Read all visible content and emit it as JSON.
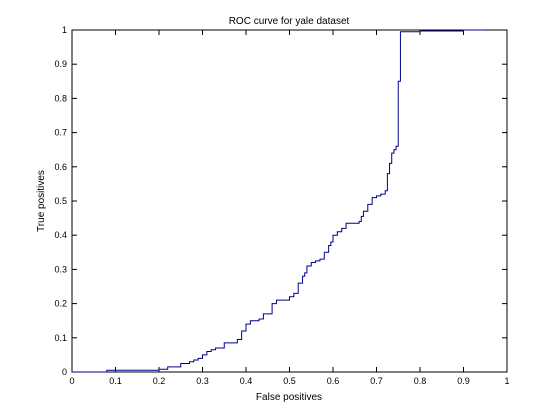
{
  "chart_data": {
    "type": "line",
    "title": "ROC curve for yale dataset",
    "xlabel": "False positives",
    "ylabel": "True positives",
    "xlim": [
      0,
      1
    ],
    "ylim": [
      0,
      1
    ],
    "xticks": [
      "0",
      "0.1",
      "0.2",
      "0.3",
      "0.4",
      "0.5",
      "0.6",
      "0.7",
      "0.8",
      "0.9",
      "1"
    ],
    "yticks": [
      "0",
      "0.1",
      "0.2",
      "0.3",
      "0.4",
      "0.5",
      "0.6",
      "0.7",
      "0.8",
      "0.9",
      "1"
    ],
    "grid": false,
    "colors": {
      "line": "#00008b",
      "axes": "#000000",
      "background": "#ffffff"
    },
    "series": [
      {
        "step": "post",
        "x": [
          0.0,
          0.08,
          0.2,
          0.22,
          0.25,
          0.27,
          0.28,
          0.29,
          0.3,
          0.31,
          0.32,
          0.33,
          0.35,
          0.38,
          0.39,
          0.4,
          0.41,
          0.43,
          0.44,
          0.46,
          0.47,
          0.5,
          0.51,
          0.52,
          0.53,
          0.535,
          0.54,
          0.55,
          0.56,
          0.57,
          0.58,
          0.59,
          0.595,
          0.6,
          0.61,
          0.62,
          0.63,
          0.66,
          0.665,
          0.67,
          0.68,
          0.69,
          0.7,
          0.71,
          0.72,
          0.725,
          0.73,
          0.735,
          0.74,
          0.745,
          0.75,
          0.755,
          0.8,
          0.9,
          0.95
        ],
        "y": [
          0.0,
          0.005,
          0.008,
          0.015,
          0.025,
          0.03,
          0.035,
          0.04,
          0.05,
          0.06,
          0.065,
          0.07,
          0.085,
          0.095,
          0.12,
          0.14,
          0.15,
          0.155,
          0.17,
          0.2,
          0.21,
          0.22,
          0.23,
          0.26,
          0.28,
          0.29,
          0.31,
          0.32,
          0.325,
          0.33,
          0.35,
          0.37,
          0.38,
          0.4,
          0.41,
          0.42,
          0.435,
          0.44,
          0.455,
          0.47,
          0.49,
          0.51,
          0.515,
          0.52,
          0.53,
          0.58,
          0.61,
          0.64,
          0.65,
          0.66,
          0.85,
          0.995,
          0.997,
          1.0,
          1.0
        ]
      }
    ]
  }
}
